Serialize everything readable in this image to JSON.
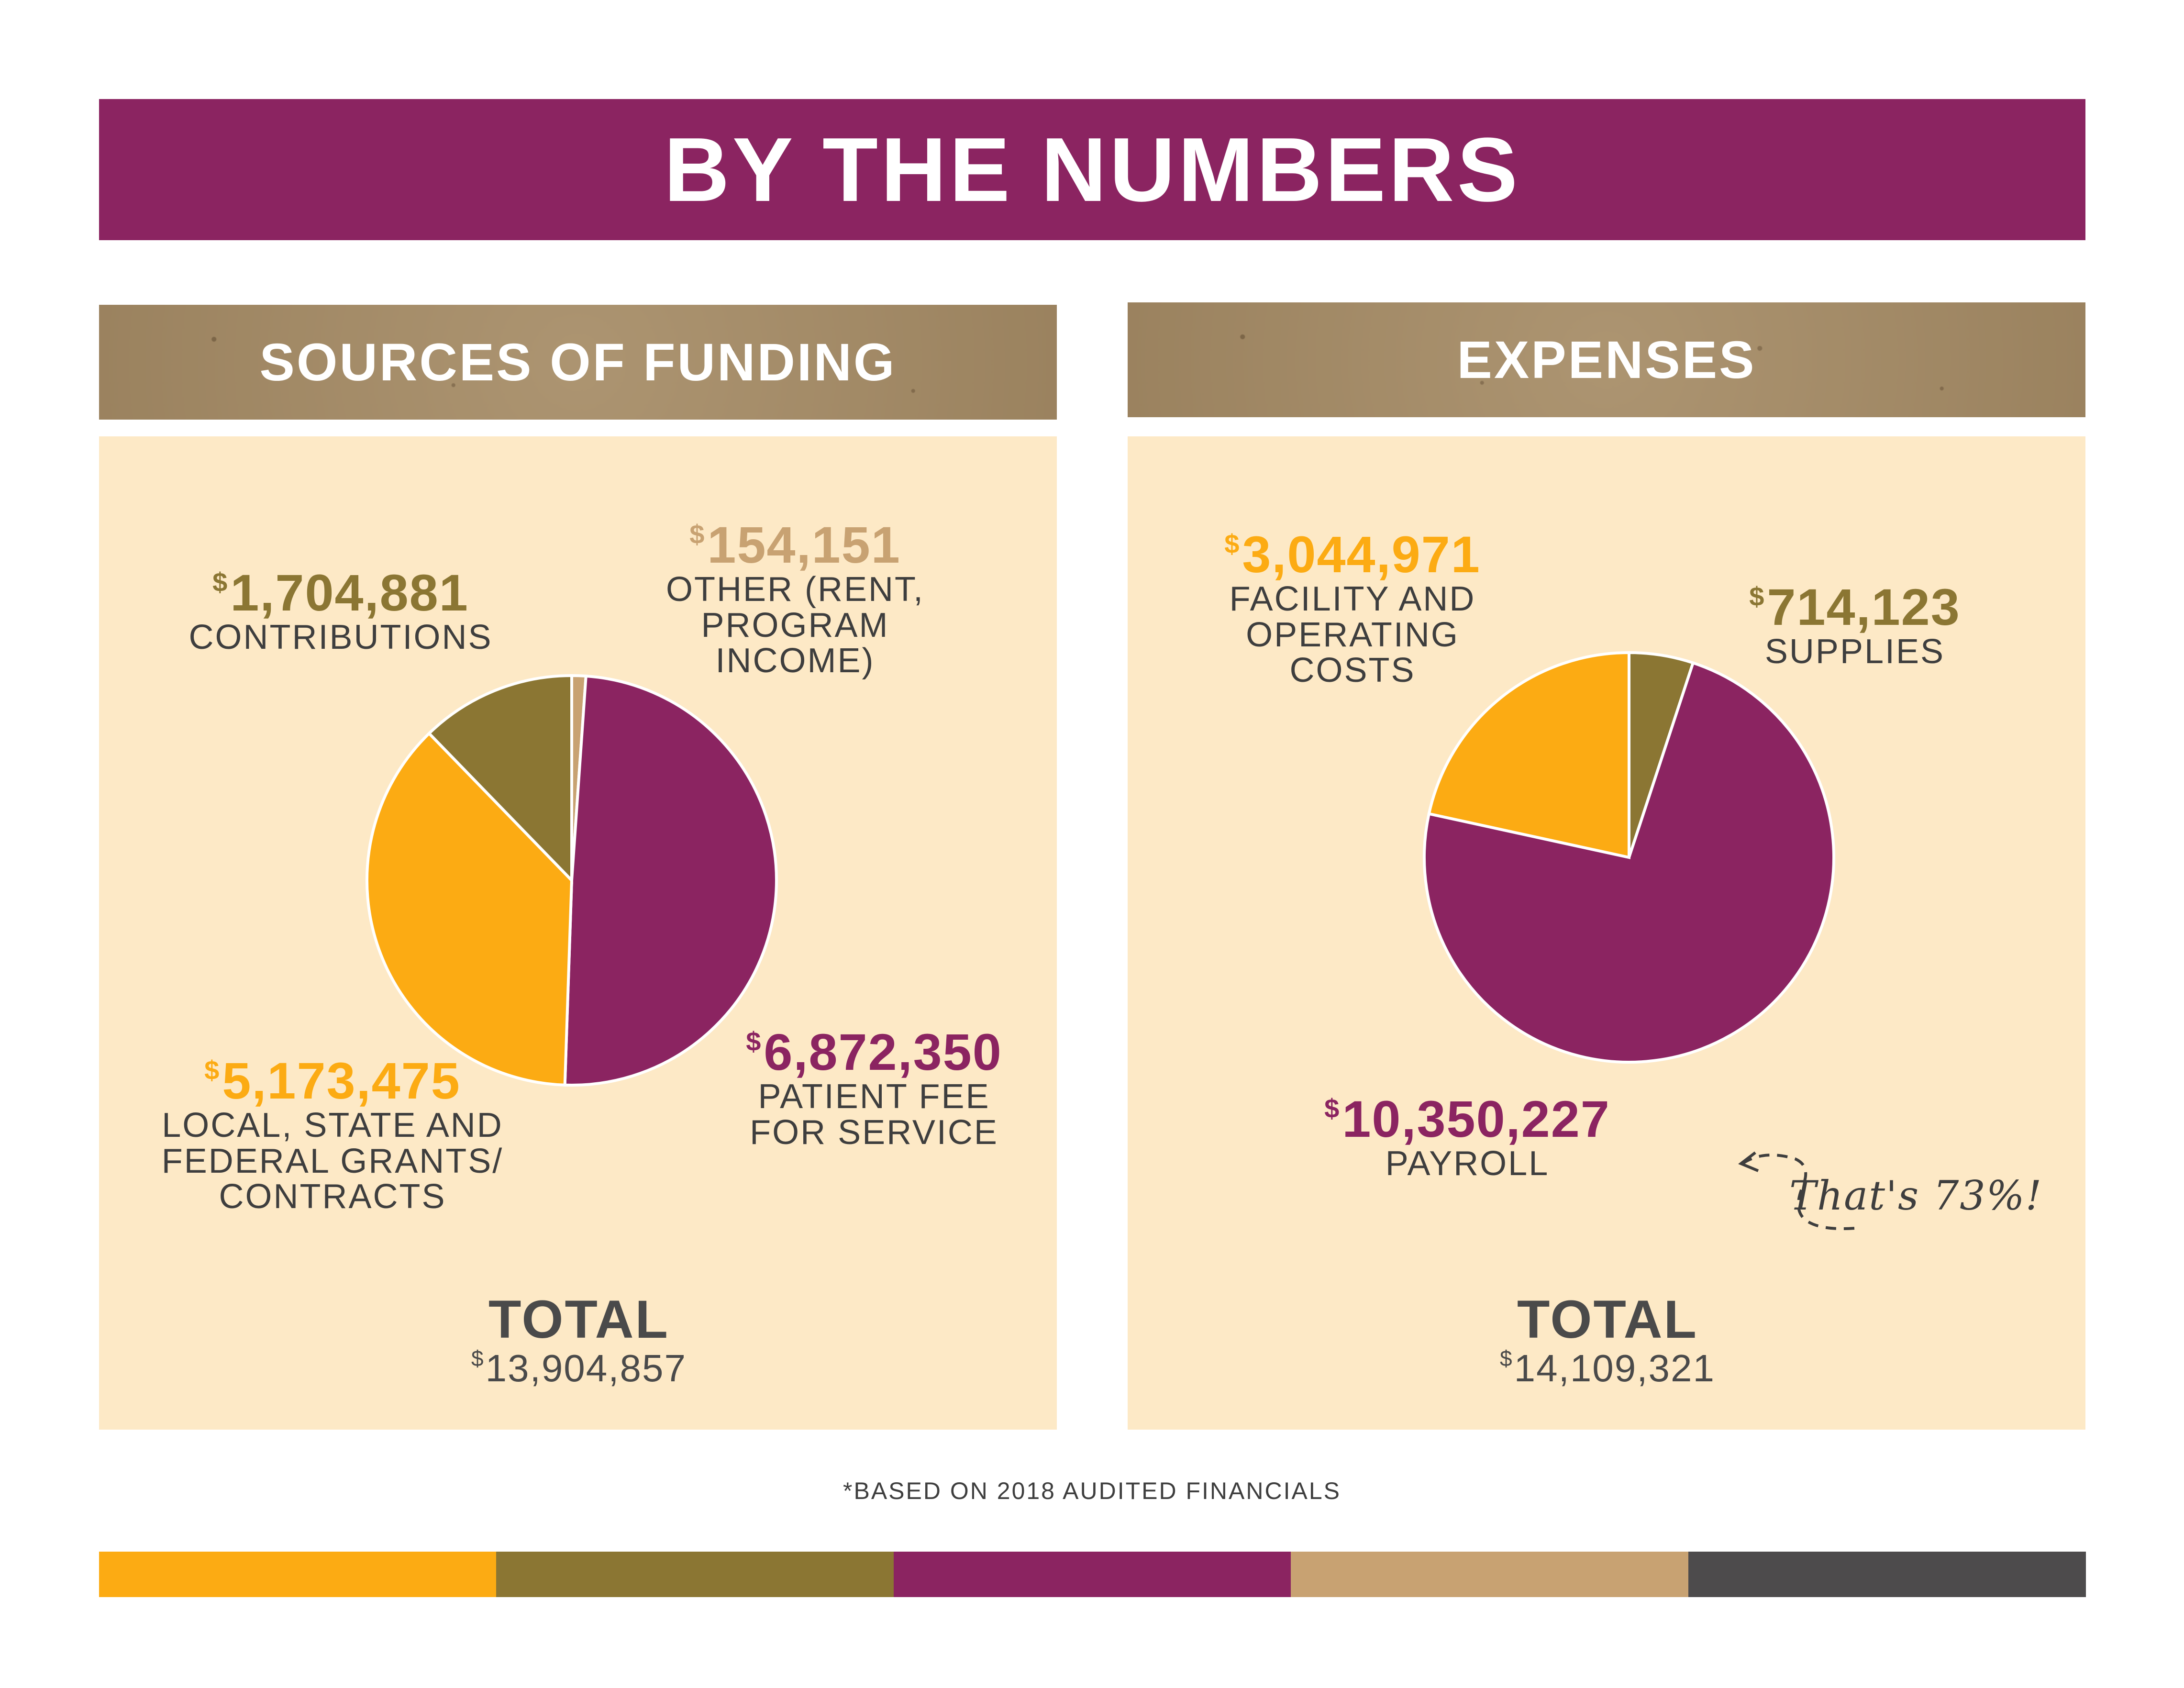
{
  "banner": {
    "title": "BY THE NUMBERS"
  },
  "colors": {
    "purple": "#8b2461",
    "orange": "#fcab13",
    "olive": "#8b7633",
    "tan": "#c8a272",
    "charcoal": "#4d4b4c",
    "panel": "#fde9c6"
  },
  "funding": {
    "header": "SOURCES OF FUNDING",
    "total_label": "TOTAL",
    "total_value": "13,904,857",
    "slices": [
      {
        "amount": "154,151",
        "label": "OTHER (RENT,\nPROGRAM INCOME)",
        "color": "#c8a272"
      },
      {
        "amount": "6,872,350",
        "label": "PATIENT FEE\nFOR SERVICE",
        "color": "#8b2461"
      },
      {
        "amount": "5,173,475",
        "label": "LOCAL, STATE AND\nFEDERAL GRANTS/\nCONTRACTS",
        "color": "#fcab13"
      },
      {
        "amount": "1,704,881",
        "label": "CONTRIBUTIONS",
        "color": "#8b7633"
      }
    ]
  },
  "expenses": {
    "header": "EXPENSES",
    "total_label": "TOTAL",
    "total_value": "14,109,321",
    "slices": [
      {
        "amount": "714,123",
        "label": "SUPPLIES",
        "color": "#8b7633"
      },
      {
        "amount": "10,350,227",
        "label": "PAYROLL",
        "color": "#8b2461"
      },
      {
        "amount": "3,044,971",
        "label": "FACILITY AND\nOPERATING\nCOSTS",
        "color": "#fcab13"
      }
    ],
    "annotation": "That's 73%!"
  },
  "currency_symbol": "$",
  "footnote": "*BASED ON 2018 AUDITED FINANCIALS",
  "color_band": [
    "#fcab13",
    "#8b7633",
    "#8b2461",
    "#c8a272",
    "#4d4b4c"
  ],
  "chart_data": [
    {
      "type": "pie",
      "title": "SOURCES OF FUNDING",
      "categories": [
        "OTHER (RENT, PROGRAM INCOME)",
        "PATIENT FEE FOR SERVICE",
        "LOCAL, STATE AND FEDERAL GRANTS/CONTRACTS",
        "CONTRIBUTIONS"
      ],
      "values": [
        154151,
        6872350,
        5173475,
        1704881
      ],
      "total": 13904857
    },
    {
      "type": "pie",
      "title": "EXPENSES",
      "categories": [
        "SUPPLIES",
        "PAYROLL",
        "FACILITY AND OPERATING COSTS"
      ],
      "values": [
        714123,
        10350227,
        3044971
      ],
      "total": 14109321
    }
  ]
}
